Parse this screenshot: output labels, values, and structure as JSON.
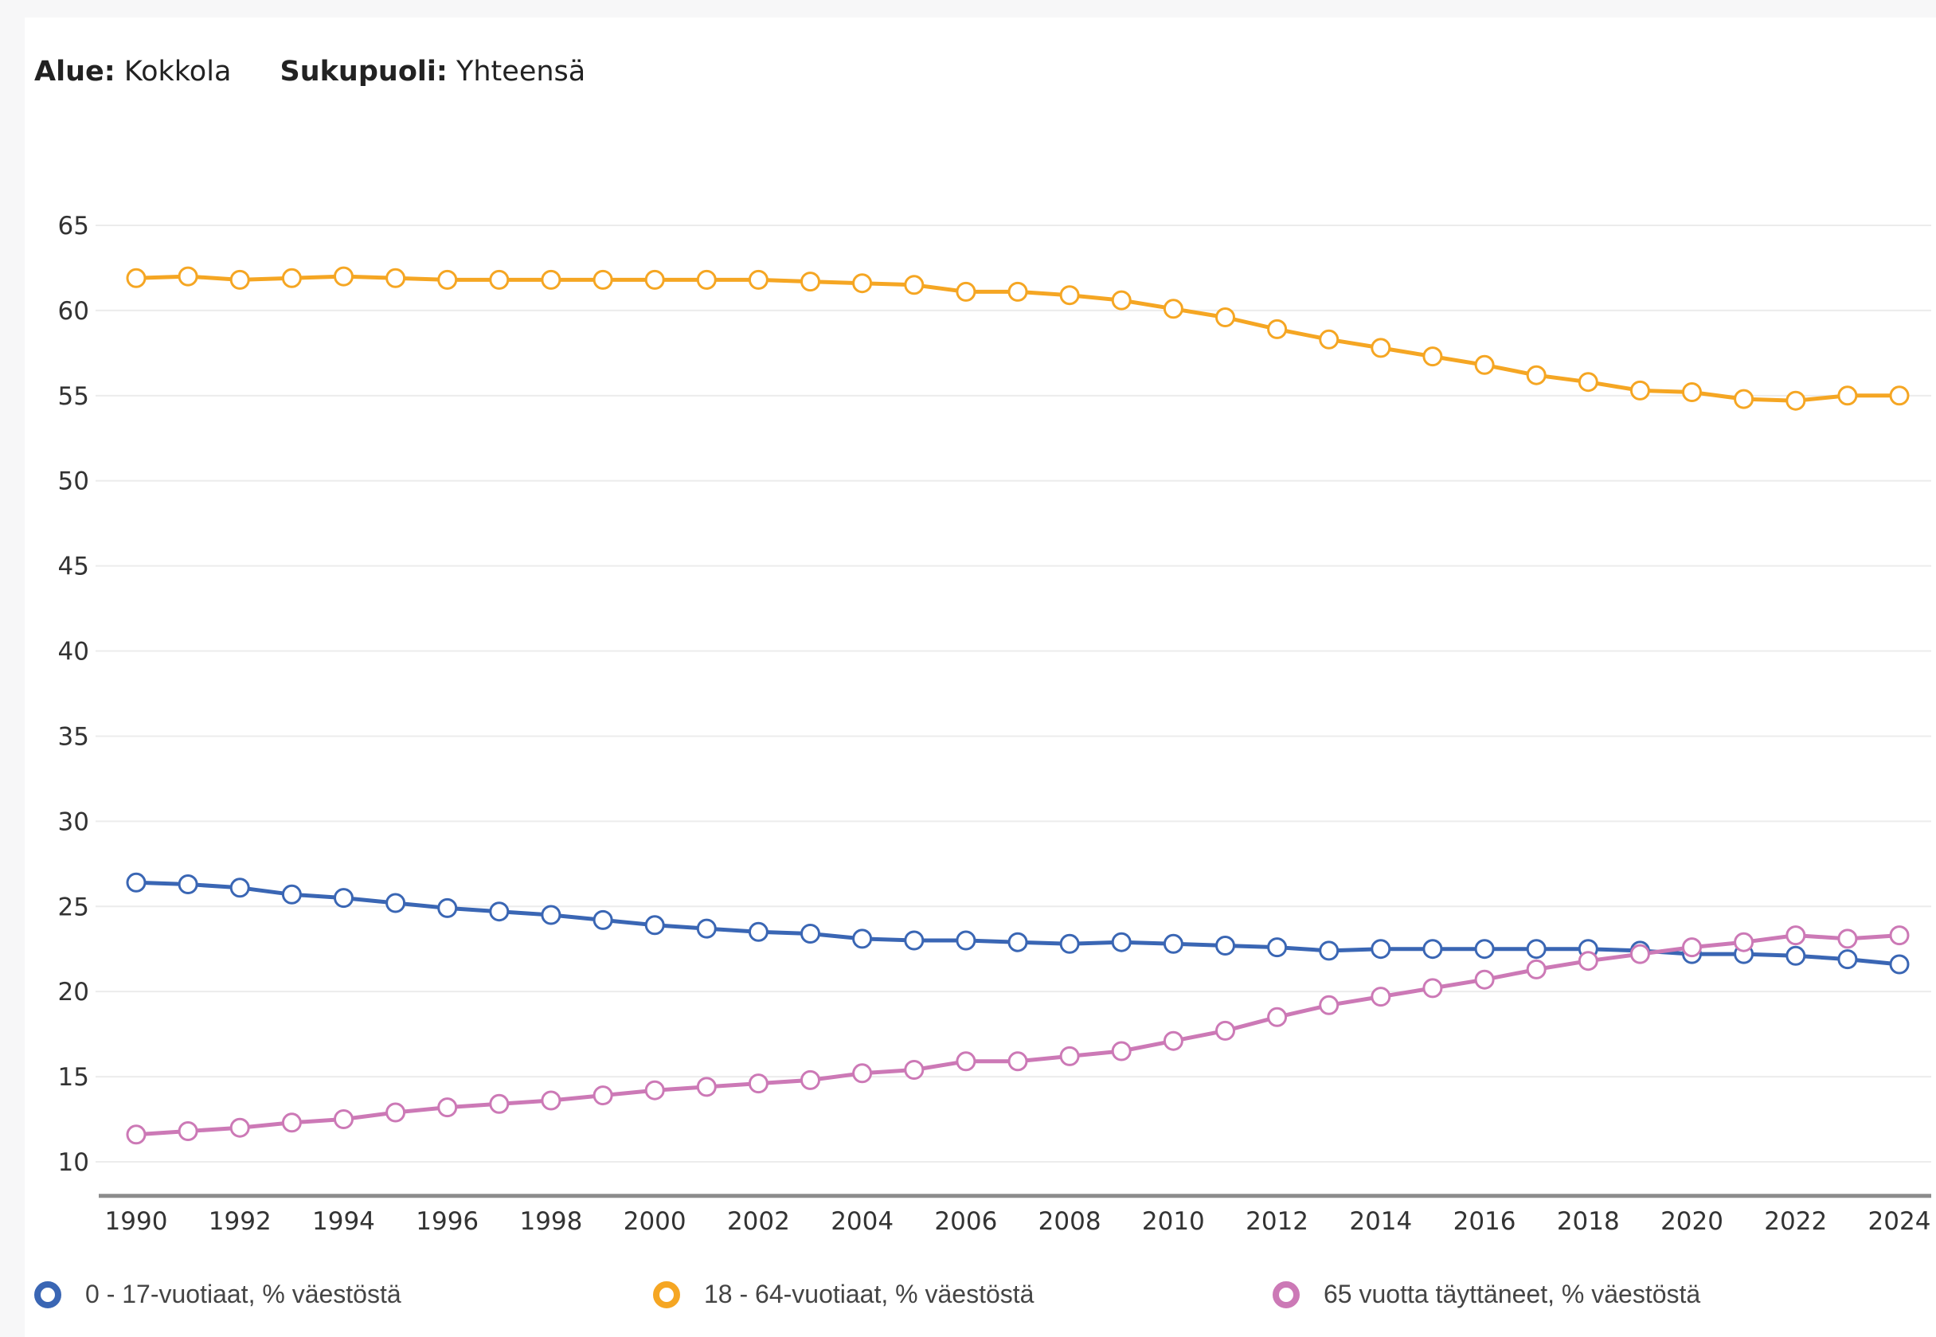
{
  "filters": {
    "area_label": "Alue:",
    "area_value": "Kokkola",
    "gender_label": "Sukupuoli:",
    "gender_value": "Yhteensä"
  },
  "chart_data": {
    "type": "line",
    "title": "",
    "xlabel": "",
    "ylabel": "",
    "x": [
      1990,
      1991,
      1992,
      1993,
      1994,
      1995,
      1996,
      1997,
      1998,
      1999,
      2000,
      2001,
      2002,
      2003,
      2004,
      2005,
      2006,
      2007,
      2008,
      2009,
      2010,
      2011,
      2012,
      2013,
      2014,
      2015,
      2016,
      2017,
      2018,
      2019,
      2020,
      2021,
      2022,
      2023,
      2024
    ],
    "x_ticks": [
      "1990",
      "1992",
      "1994",
      "1996",
      "1998",
      "2000",
      "2002",
      "2004",
      "2006",
      "2008",
      "2010",
      "2012",
      "2014",
      "2016",
      "2018",
      "2020",
      "2022",
      "2024"
    ],
    "y_ticks": [
      "10",
      "15",
      "20",
      "25",
      "30",
      "35",
      "40",
      "45",
      "50",
      "55",
      "60",
      "65"
    ],
    "xlim": [
      1990,
      2024
    ],
    "ylim": [
      8,
      65
    ],
    "grid": true,
    "legend_position": "bottom",
    "series": [
      {
        "name": "0 - 17-vuotiaat, % väestöstä",
        "color": "#3a66b4",
        "values": [
          26.4,
          26.3,
          26.1,
          25.7,
          25.5,
          25.2,
          24.9,
          24.7,
          24.5,
          24.2,
          23.9,
          23.7,
          23.5,
          23.4,
          23.1,
          23.0,
          23.0,
          22.9,
          22.8,
          22.9,
          22.8,
          22.7,
          22.6,
          22.4,
          22.5,
          22.5,
          22.5,
          22.5,
          22.5,
          22.4,
          22.2,
          22.2,
          22.1,
          21.9,
          21.6
        ]
      },
      {
        "name": "18 - 64-vuotiaat, % väestöstä",
        "color": "#f5a623",
        "values": [
          61.9,
          62.0,
          61.8,
          61.9,
          62.0,
          61.9,
          61.8,
          61.8,
          61.8,
          61.8,
          61.8,
          61.8,
          61.8,
          61.7,
          61.6,
          61.5,
          61.1,
          61.1,
          60.9,
          60.6,
          60.1,
          59.6,
          58.9,
          58.3,
          57.8,
          57.3,
          56.8,
          56.2,
          55.8,
          55.3,
          55.2,
          54.8,
          54.7,
          55.0,
          55.0
        ]
      },
      {
        "name": "65 vuotta täyttäneet, % väestöstä",
        "color": "#cc79b6",
        "values": [
          11.6,
          11.8,
          12.0,
          12.3,
          12.5,
          12.9,
          13.2,
          13.4,
          13.6,
          13.9,
          14.2,
          14.4,
          14.6,
          14.8,
          15.2,
          15.4,
          15.9,
          15.9,
          16.2,
          16.5,
          17.1,
          17.7,
          18.5,
          19.2,
          19.7,
          20.2,
          20.7,
          21.3,
          21.8,
          22.2,
          22.6,
          22.9,
          23.3,
          23.1,
          23.3
        ]
      }
    ]
  }
}
